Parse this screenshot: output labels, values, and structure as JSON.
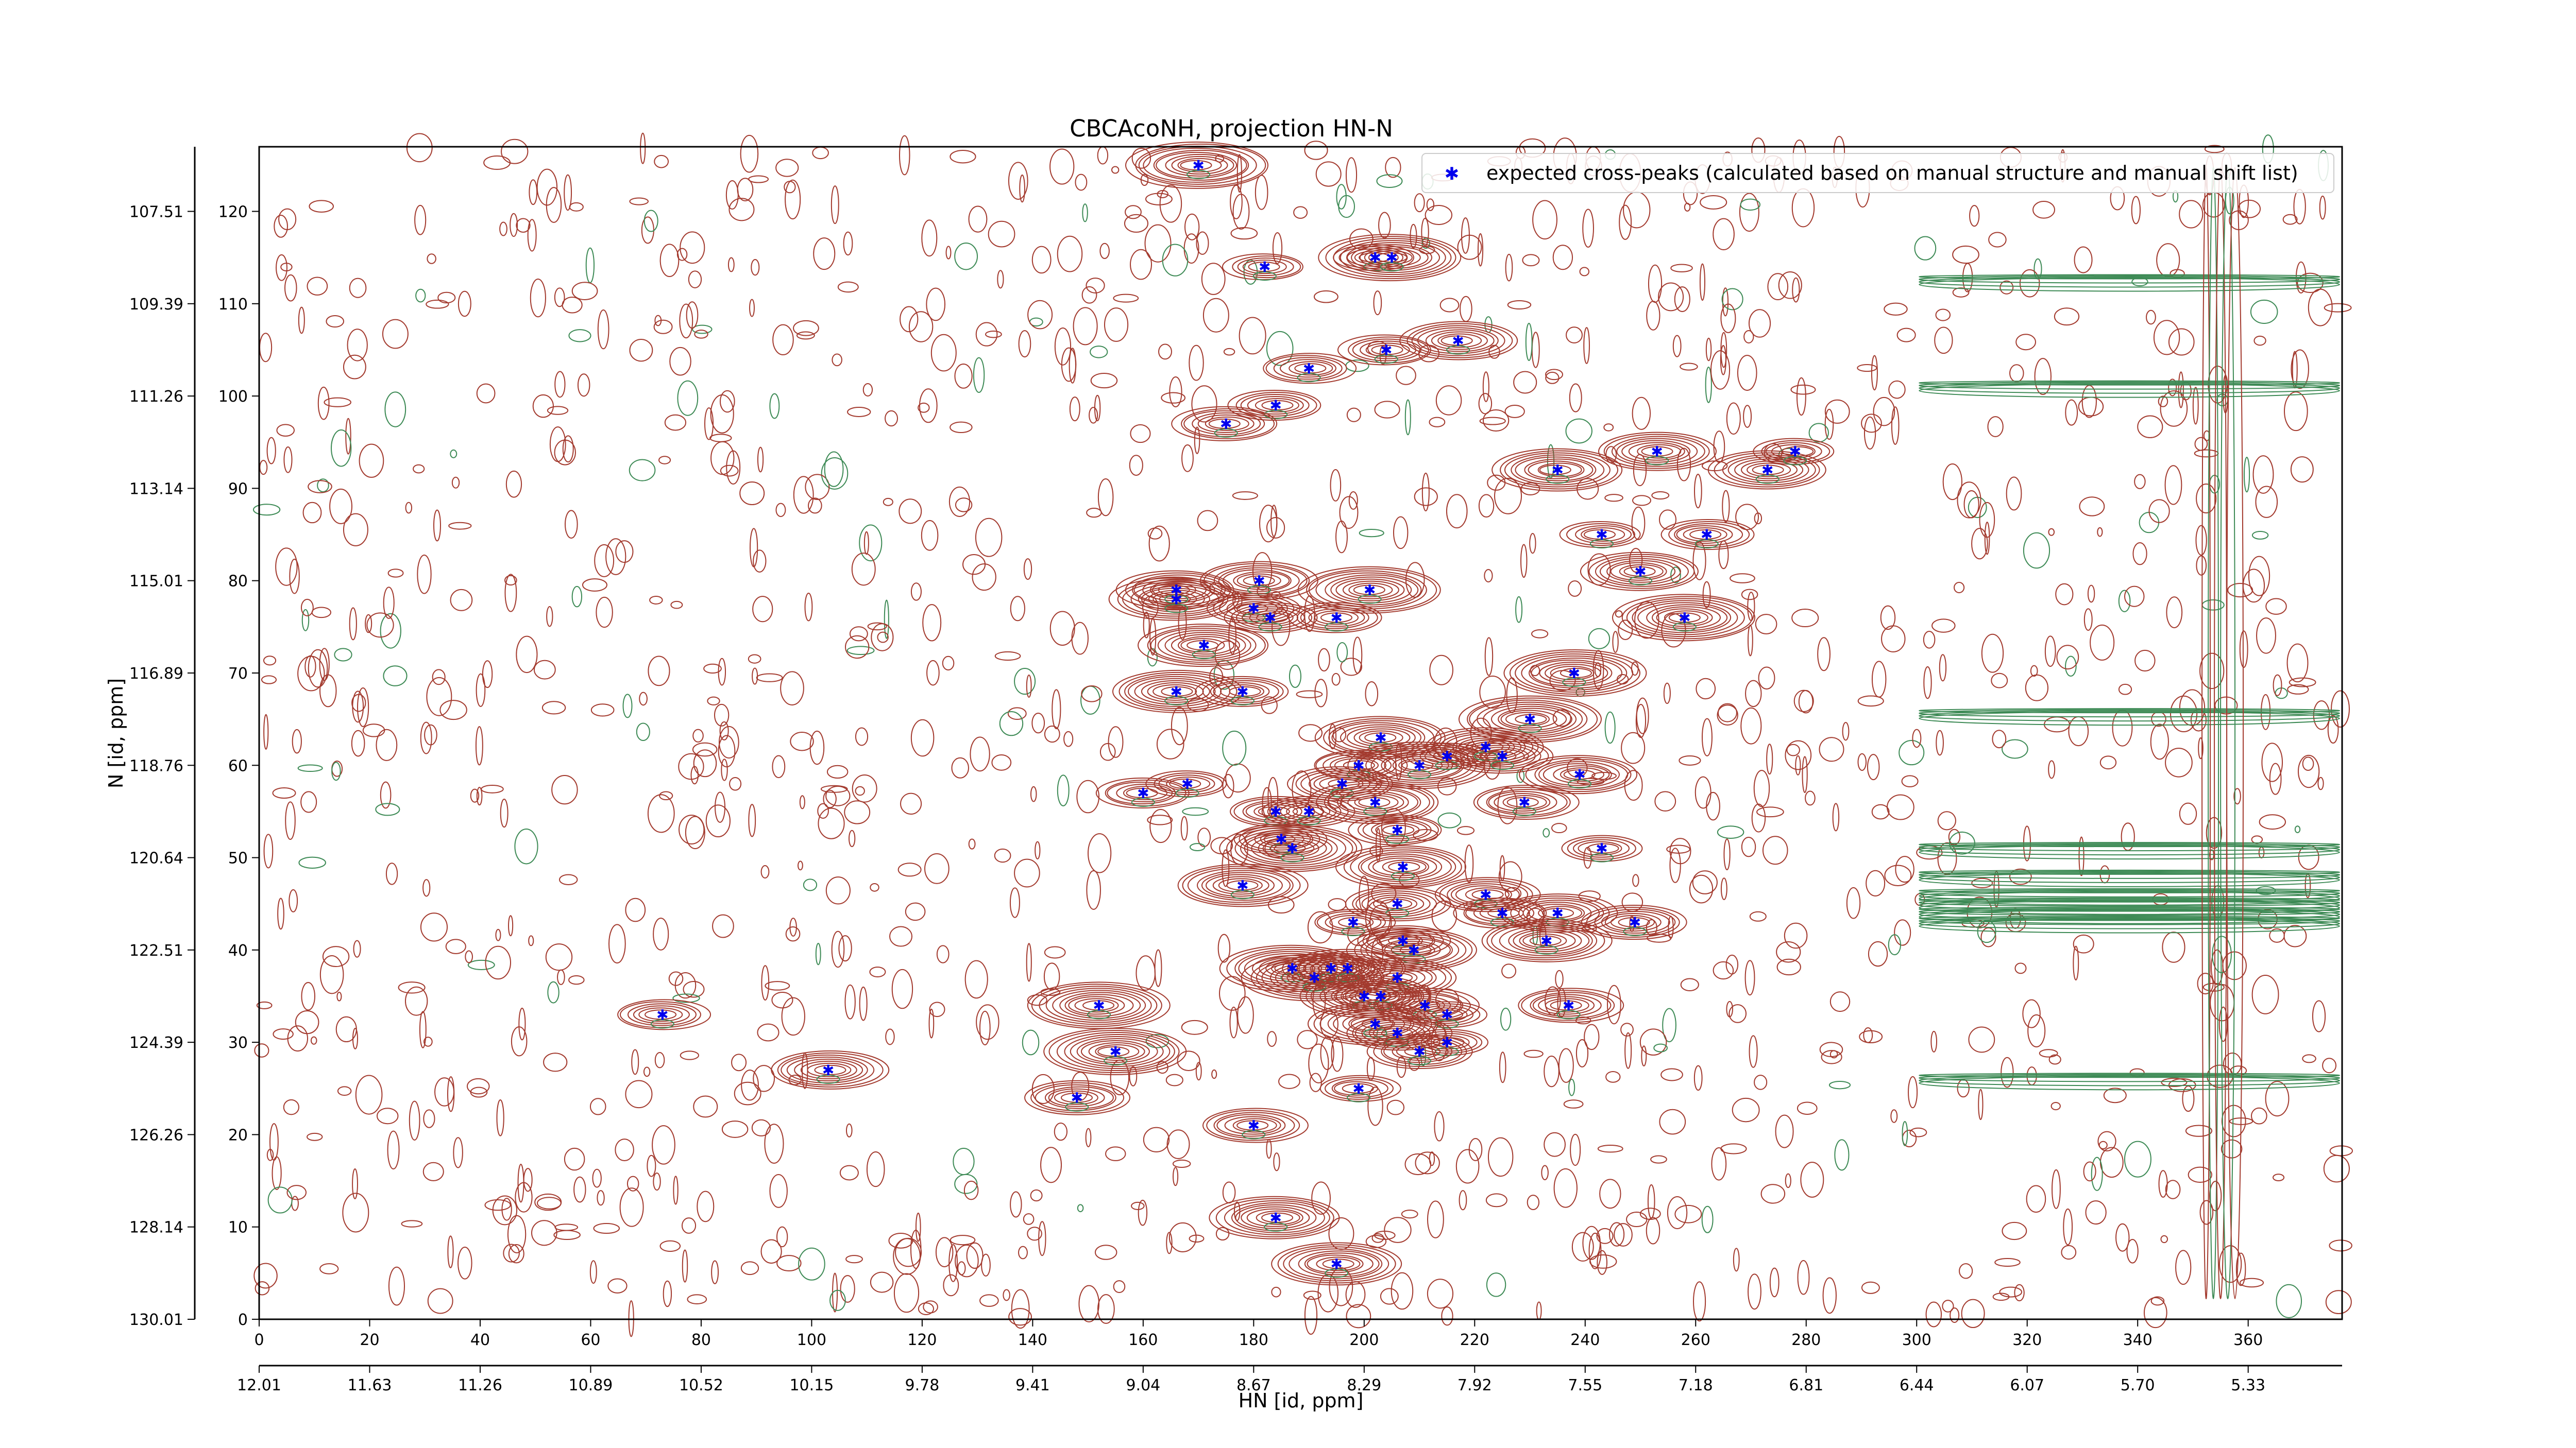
{
  "chart_data": {
    "type": "scatter",
    "title": "CBCAcoNH, projection HN-N",
    "xlabel": "HN [id, ppm]",
    "ylabel": "N [id, ppm]",
    "xlim": [
      0,
      377
    ],
    "ylim": [
      0,
      127
    ],
    "x_ticks": [
      "0",
      "20",
      "40",
      "60",
      "80",
      "100",
      "120",
      "140",
      "160",
      "180",
      "200",
      "220",
      "240",
      "260",
      "280",
      "300",
      "320",
      "340",
      "360"
    ],
    "y_ticks": [
      "0",
      "10",
      "20",
      "30",
      "40",
      "50",
      "60",
      "70",
      "80",
      "90",
      "100",
      "110",
      "120"
    ],
    "x_ppm_ticks": [
      "12.01",
      "11.63",
      "11.26",
      "10.89",
      "10.52",
      "10.15",
      "9.78",
      "9.41",
      "9.04",
      "8.67",
      "8.29",
      "7.92",
      "7.55",
      "7.18",
      "6.81",
      "6.44",
      "6.07",
      "5.70",
      "5.33"
    ],
    "y_ppm_ticks": [
      "130.01",
      "128.14",
      "126.26",
      "124.39",
      "122.51",
      "120.64",
      "118.76",
      "116.89",
      "115.01",
      "113.14",
      "111.26",
      "109.39",
      "107.51"
    ],
    "legend": {
      "position": "top-right",
      "label": "expected cross-peaks (calculated based on manual structure and manual shift list)"
    },
    "colors": {
      "positive_contour": "#a33a2e",
      "negative_contour": "#3d8a55",
      "marker": "#0000ee"
    },
    "series": [
      {
        "name": "expected cross-peaks (calculated based on manual structure and manual shift list)",
        "points": [
          [
            170,
            125
          ],
          [
            182,
            114
          ],
          [
            202,
            115
          ],
          [
            205,
            115
          ],
          [
            217,
            106
          ],
          [
            204,
            105
          ],
          [
            190,
            103
          ],
          [
            184,
            99
          ],
          [
            175,
            97
          ],
          [
            235,
            92
          ],
          [
            253,
            94
          ],
          [
            273,
            92
          ],
          [
            278,
            94
          ],
          [
            243,
            85
          ],
          [
            262,
            85
          ],
          [
            250,
            81
          ],
          [
            258,
            76
          ],
          [
            166,
            79
          ],
          [
            166,
            78
          ],
          [
            181,
            80
          ],
          [
            180,
            77
          ],
          [
            183,
            76
          ],
          [
            195,
            76
          ],
          [
            201,
            79
          ],
          [
            171,
            73
          ],
          [
            166,
            68
          ],
          [
            178,
            68
          ],
          [
            238,
            70
          ],
          [
            230,
            65
          ],
          [
            203,
            63
          ],
          [
            199,
            60
          ],
          [
            160,
            57
          ],
          [
            168,
            58
          ],
          [
            184,
            55
          ],
          [
            190,
            55
          ],
          [
            196,
            58
          ],
          [
            202,
            56
          ],
          [
            210,
            60
          ],
          [
            215,
            61
          ],
          [
            222,
            62
          ],
          [
            225,
            61
          ],
          [
            229,
            56
          ],
          [
            239,
            59
          ],
          [
            206,
            53
          ],
          [
            185,
            52
          ],
          [
            187,
            51
          ],
          [
            243,
            51
          ],
          [
            207,
            49
          ],
          [
            178,
            47
          ],
          [
            222,
            46
          ],
          [
            206,
            45
          ],
          [
            225,
            44
          ],
          [
            235,
            44
          ],
          [
            198,
            43
          ],
          [
            207,
            41
          ],
          [
            209,
            40
          ],
          [
            233,
            41
          ],
          [
            249,
            43
          ],
          [
            187,
            38
          ],
          [
            191,
            37
          ],
          [
            194,
            38
          ],
          [
            197,
            38
          ],
          [
            206,
            37
          ],
          [
            200,
            35
          ],
          [
            203,
            35
          ],
          [
            237,
            34
          ],
          [
            211,
            34
          ],
          [
            215,
            33
          ],
          [
            202,
            32
          ],
          [
            206,
            31
          ],
          [
            215,
            30
          ],
          [
            210,
            29
          ],
          [
            152,
            34
          ],
          [
            73,
            33
          ],
          [
            103,
            27
          ],
          [
            155,
            29
          ],
          [
            199,
            25
          ],
          [
            148,
            24
          ],
          [
            180,
            21
          ],
          [
            184,
            11
          ],
          [
            195,
            6
          ]
        ]
      }
    ]
  }
}
